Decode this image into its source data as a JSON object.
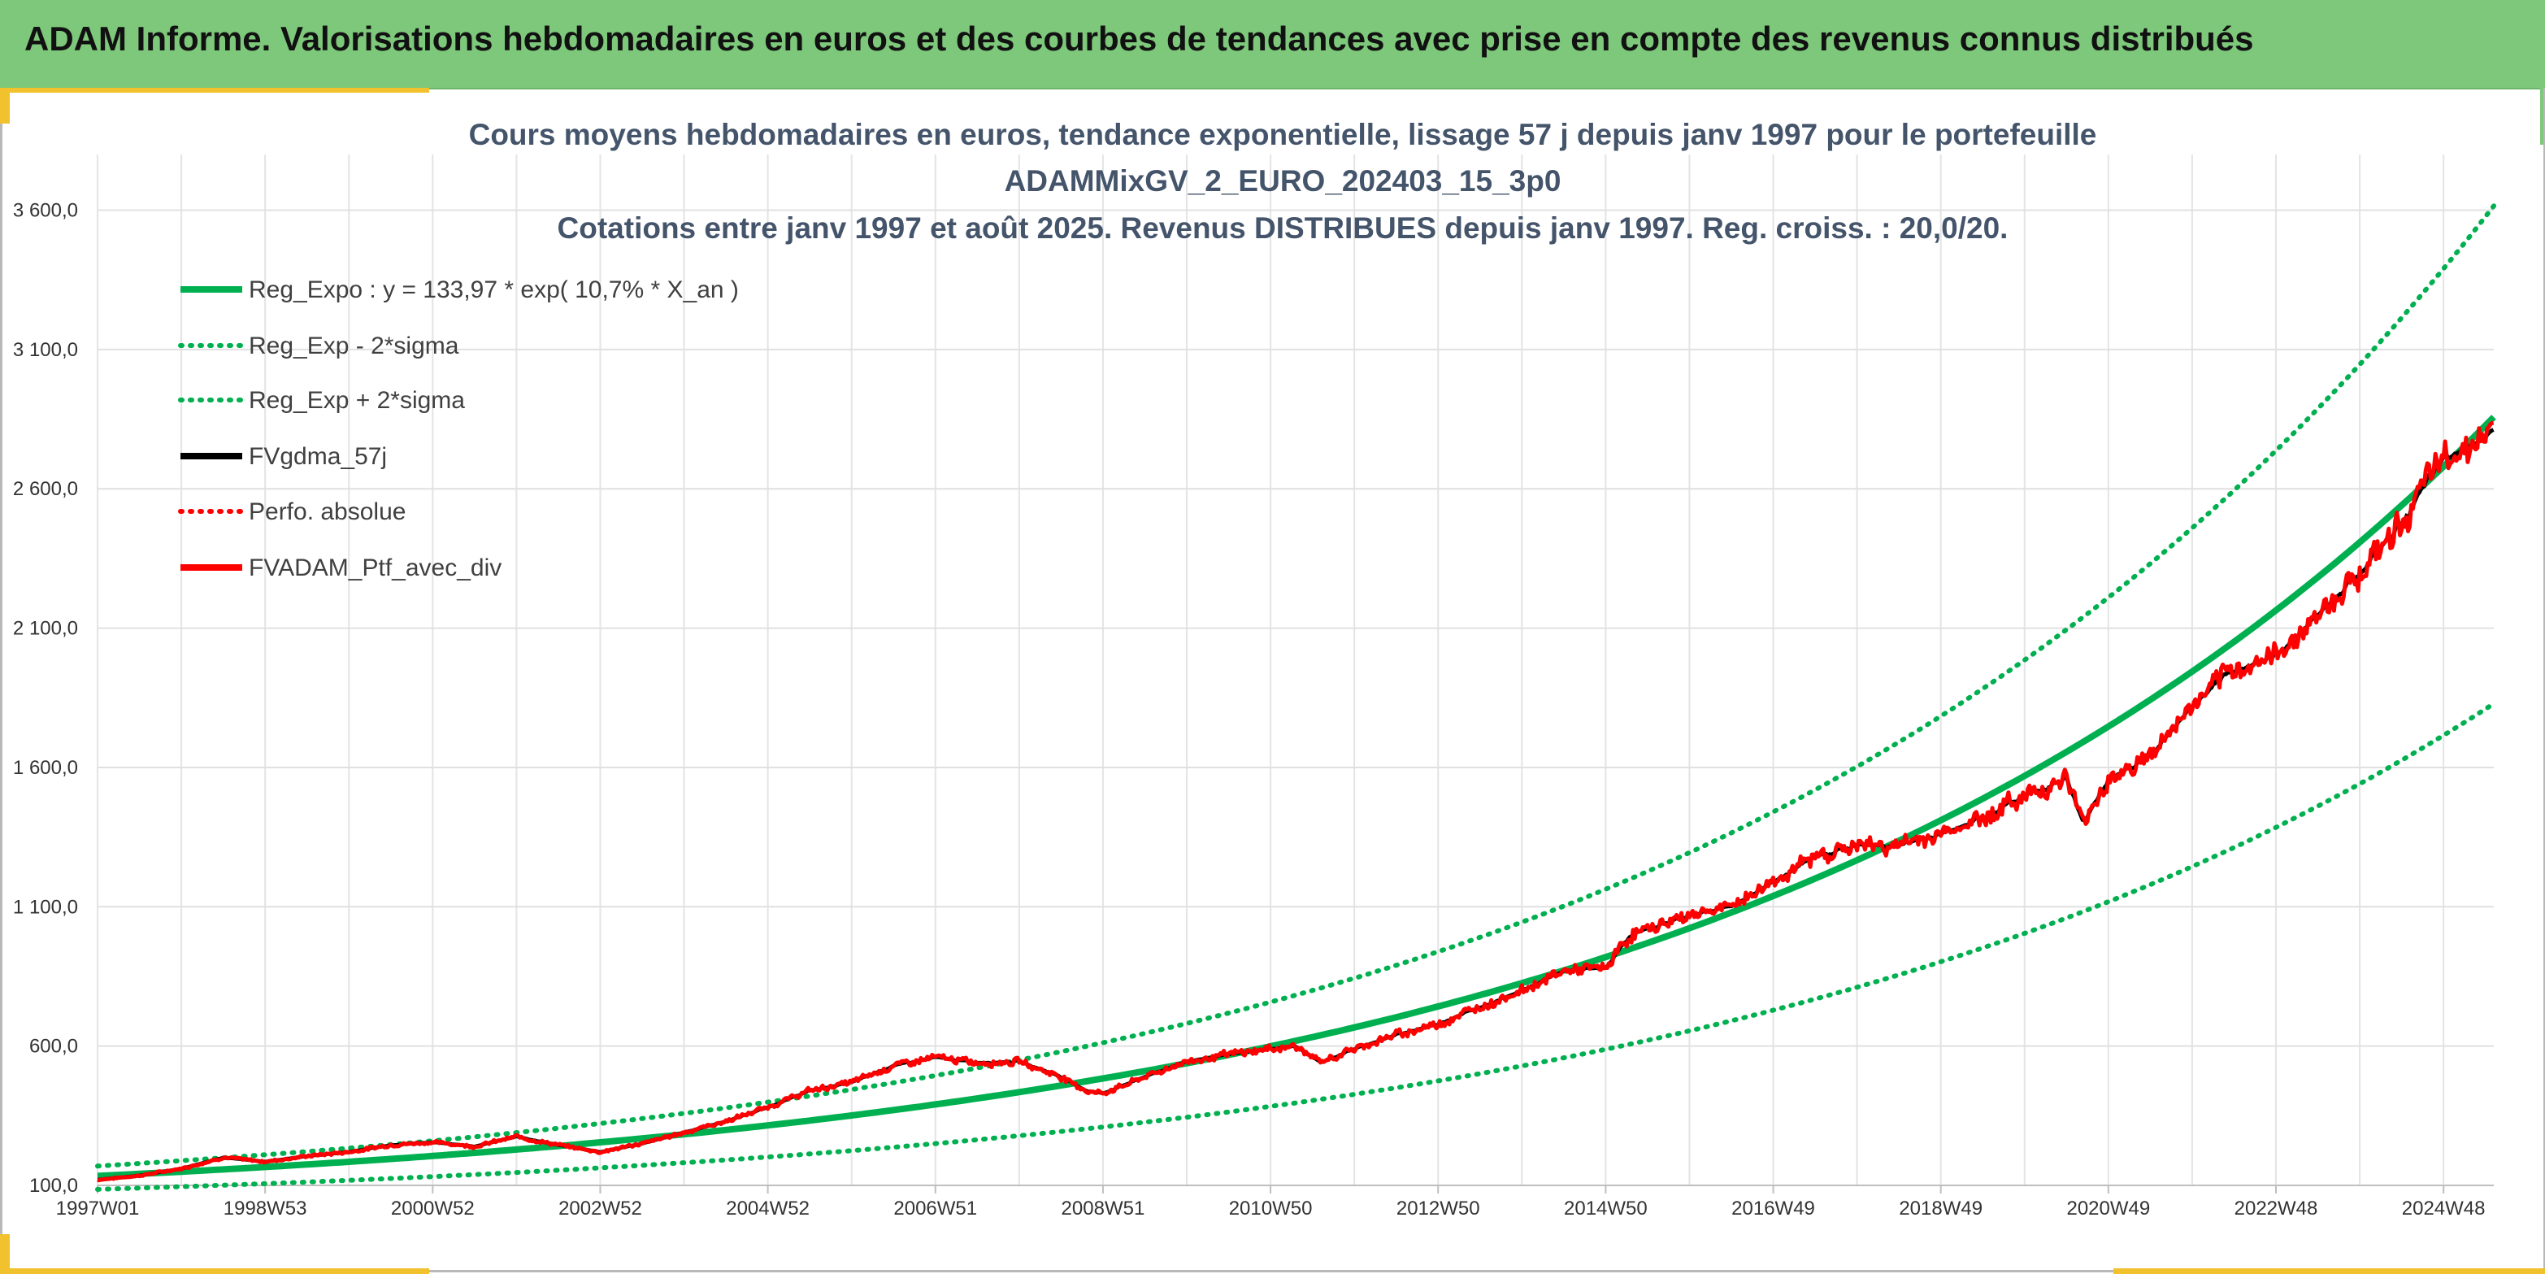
{
  "header": {
    "title": "ADAM Informe. Valorisations hebdomadaires en euros et des courbes de tendances avec prise en compte des revenus connus distribués"
  },
  "colors": {
    "header_bg": "#7dc87a",
    "accent_yellow": "#f2c12e",
    "trend_green": "#00b050",
    "smooth_black": "#000000",
    "portfolio_red": "#ff0000"
  },
  "chart_data": {
    "type": "line",
    "title_lines": [
      "Cours moyens hebdomadaires en euros, tendance exponentielle, lissage 57 j depuis janv 1997 pour le portefeuille",
      "ADAMMixGV_2_EURO_202403_15_3p0",
      "Cotations entre janv 1997 et août 2025. Revenus DISTRIBUES depuis janv 1997. Reg. croiss. : 20,0/20."
    ],
    "xlabel": "",
    "ylabel": "",
    "ylim": [
      100,
      3800
    ],
    "yticks": [
      100,
      600,
      1100,
      1600,
      2100,
      2600,
      3100,
      3600
    ],
    "ytick_labels": [
      "100,0",
      "600,0",
      "1 100,0",
      "1 600,0",
      "2 100,0",
      "2 600,0",
      "3 100,0",
      "3 600,0"
    ],
    "xlim": [
      0,
      28.6
    ],
    "xtick_labels": [
      "1997W01",
      "1998W53",
      "2000W52",
      "2002W52",
      "2004W52",
      "2006W51",
      "2008W51",
      "2010W50",
      "2012W50",
      "2014W50",
      "2016W49",
      "2018W49",
      "2020W49",
      "2022W48",
      "2024W48"
    ],
    "xtick_positions": [
      0,
      2,
      4,
      6,
      8,
      10,
      12,
      14,
      16,
      18,
      20,
      22,
      24,
      26,
      28
    ],
    "grid": true,
    "legend_position": "top-left",
    "series": [
      {
        "name": "Reg_Expo : y = 133,97 * exp( 10,7% *  X_an )",
        "style": "solid",
        "color": "#00b050"
      },
      {
        "name": "Reg_Exp - 2*sigma",
        "style": "dotted",
        "color": "#00b050"
      },
      {
        "name": "Reg_Exp + 2*sigma",
        "style": "dotted",
        "color": "#00b050"
      },
      {
        "name": "FVgdma_57j",
        "style": "solid",
        "color": "#000000"
      },
      {
        "name": "Perfo. absolue",
        "style": "dotted",
        "color": "#ff0000"
      },
      {
        "name": "FVADAM_Ptf_avec_div",
        "style": "solid",
        "color": "#ff0000"
      }
    ],
    "trend": {
      "a": 133.97,
      "b": 0.107,
      "lower_factor": 0.64,
      "upper_factor": 1.265
    },
    "portfolio_points": {
      "x": [
        0,
        0.5,
        1,
        1.5,
        2,
        2.5,
        3,
        3.5,
        4,
        4.5,
        5,
        5.5,
        6,
        6.5,
        7,
        7.5,
        8,
        8.5,
        9,
        9.5,
        10,
        10.5,
        11,
        11.5,
        11.8,
        12,
        12.5,
        13,
        13.5,
        14,
        14.3,
        14.6,
        15,
        15.5,
        16,
        16.5,
        17,
        17.5,
        18,
        18.3,
        18.6,
        19,
        19.5,
        20,
        20.5,
        21,
        21.5,
        22,
        22.5,
        23,
        23.5,
        23.7,
        24,
        24.5,
        25,
        25.5,
        26,
        26.5,
        27,
        27.5,
        28,
        28.3,
        28.6
      ],
      "y": [
        120,
        135,
        160,
        200,
        185,
        205,
        220,
        245,
        255,
        240,
        275,
        245,
        220,
        250,
        290,
        330,
        380,
        440,
        470,
        530,
        560,
        540,
        545,
        490,
        440,
        430,
        490,
        545,
        570,
        590,
        600,
        540,
        590,
        640,
        680,
        740,
        800,
        870,
        880,
        1000,
        1030,
        1070,
        1100,
        1190,
        1280,
        1320,
        1320,
        1360,
        1420,
        1500,
        1560,
        1400,
        1560,
        1640,
        1820,
        1950,
        2000,
        2150,
        2300,
        2480,
        2710,
        2760,
        2800
      ]
    }
  }
}
